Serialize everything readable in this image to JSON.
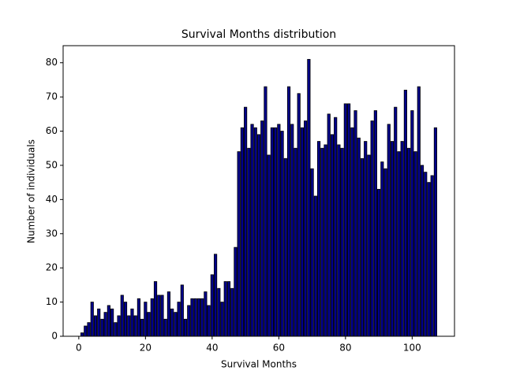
{
  "chart_data": {
    "type": "bar",
    "title": "Survival Months distribution",
    "xlabel": "Survival Months",
    "ylabel": "Number of individuals",
    "x": [
      1,
      2,
      3,
      4,
      5,
      6,
      7,
      8,
      9,
      10,
      11,
      12,
      13,
      14,
      15,
      16,
      17,
      18,
      19,
      20,
      21,
      22,
      23,
      24,
      25,
      26,
      27,
      28,
      29,
      30,
      31,
      32,
      33,
      34,
      35,
      36,
      37,
      38,
      39,
      40,
      41,
      42,
      43,
      44,
      45,
      46,
      47,
      48,
      49,
      50,
      51,
      52,
      53,
      54,
      55,
      56,
      57,
      58,
      59,
      60,
      61,
      62,
      63,
      64,
      65,
      66,
      67,
      68,
      69,
      70,
      71,
      72,
      73,
      74,
      75,
      76,
      77,
      78,
      79,
      80,
      81,
      82,
      83,
      84,
      85,
      86,
      87,
      88,
      89,
      90,
      91,
      92,
      93,
      94,
      95,
      96,
      97,
      98,
      99,
      100,
      101,
      102,
      103,
      104,
      105,
      106,
      107
    ],
    "values": [
      1,
      3,
      4,
      10,
      6,
      8,
      5,
      7,
      9,
      8,
      4,
      6,
      12,
      10,
      6,
      8,
      6,
      11,
      5,
      10,
      7,
      11,
      16,
      12,
      12,
      5,
      13,
      8,
      7,
      10,
      15,
      5,
      9,
      11,
      11,
      11,
      11,
      13,
      9,
      18,
      24,
      14,
      10,
      16,
      16,
      14,
      26,
      54,
      61,
      67,
      55,
      62,
      61,
      59,
      63,
      73,
      53,
      61,
      61,
      62,
      60,
      52,
      73,
      62,
      55,
      71,
      61,
      63,
      81,
      49,
      41,
      57,
      55,
      56,
      65,
      59,
      64,
      56,
      55,
      68,
      68,
      61,
      66,
      58,
      52,
      57,
      53,
      63,
      66,
      43,
      51,
      49,
      62,
      57,
      67,
      54,
      57,
      72,
      55,
      66,
      54,
      73,
      50,
      48,
      45,
      47,
      61
    ],
    "color": "#00008b",
    "edgecolor": "#000000",
    "xlim": [
      -4.7,
      112.7
    ],
    "xticks": [
      0,
      20,
      40,
      60,
      80,
      100
    ],
    "ylim": [
      0,
      85
    ],
    "yticks": [
      0,
      10,
      20,
      30,
      40,
      50,
      60,
      70,
      80
    ],
    "grid": false
  }
}
